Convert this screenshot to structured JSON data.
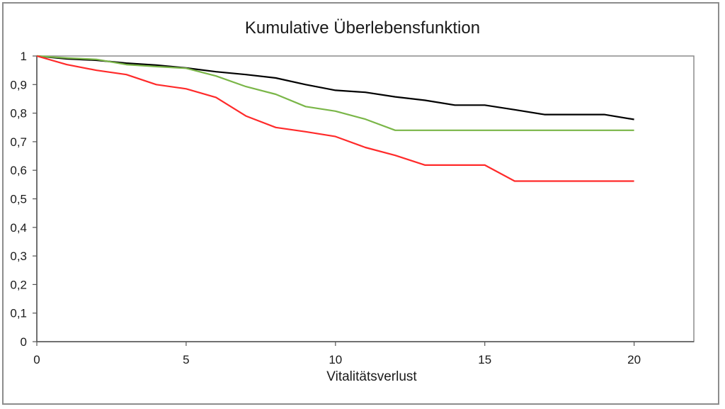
{
  "chart_data": {
    "type": "line",
    "title": "Kumulative Überlebensfunktion",
    "xlabel": "Vitalitätsverlust",
    "ylabel": "",
    "xlim": [
      0,
      22
    ],
    "ylim": [
      0,
      1
    ],
    "x_ticks": [
      "0",
      "5",
      "10",
      "15",
      "20"
    ],
    "x_tick_values": [
      0,
      5,
      10,
      15,
      20
    ],
    "y_ticks": [
      "0",
      "0,1",
      "0,2",
      "0,3",
      "0,4",
      "0,5",
      "0,6",
      "0,7",
      "0,8",
      "0,9",
      "1"
    ],
    "y_tick_values": [
      0,
      0.1,
      0.2,
      0.3,
      0.4,
      0.5,
      0.6,
      0.7,
      0.8,
      0.9,
      1
    ],
    "grid": false,
    "legend": "none",
    "series": [
      {
        "color": "#000000",
        "x": [
          0,
          1,
          2,
          3,
          4,
          5,
          6,
          7,
          8,
          9,
          10,
          11,
          12,
          13,
          14,
          15,
          16,
          17,
          18,
          19,
          20
        ],
        "values": [
          1.0,
          0.99,
          0.985,
          0.975,
          0.968,
          0.958,
          0.945,
          0.935,
          0.923,
          0.9,
          0.88,
          0.873,
          0.857,
          0.845,
          0.828,
          0.828,
          0.812,
          0.795,
          0.795,
          0.795,
          0.778
        ]
      },
      {
        "color": "#7ab648",
        "x": [
          0,
          1,
          2,
          3,
          4,
          5,
          6,
          7,
          8,
          9,
          10,
          11,
          12,
          13,
          14,
          15,
          16,
          17,
          18,
          19,
          20
        ],
        "values": [
          1.0,
          0.993,
          0.988,
          0.97,
          0.963,
          0.957,
          0.93,
          0.893,
          0.866,
          0.823,
          0.807,
          0.779,
          0.74,
          0.74,
          0.74,
          0.74,
          0.74,
          0.74,
          0.74,
          0.74,
          0.74
        ]
      },
      {
        "color": "#ff2a2a",
        "x": [
          0,
          1,
          2,
          3,
          4,
          5,
          6,
          7,
          8,
          9,
          10,
          11,
          12,
          13,
          14,
          15,
          16,
          17,
          18,
          19,
          20
        ],
        "values": [
          1.0,
          0.97,
          0.95,
          0.935,
          0.9,
          0.885,
          0.855,
          0.79,
          0.75,
          0.735,
          0.718,
          0.68,
          0.652,
          0.618,
          0.618,
          0.618,
          0.562,
          0.562,
          0.562,
          0.562,
          0.562
        ]
      }
    ]
  }
}
